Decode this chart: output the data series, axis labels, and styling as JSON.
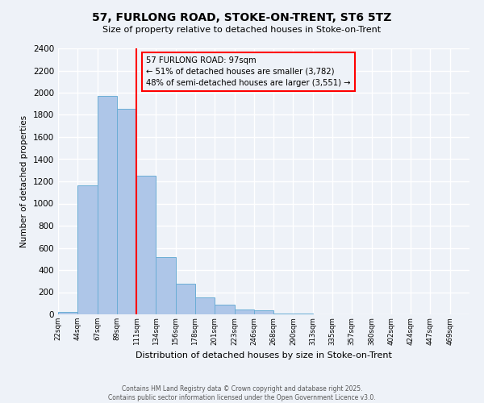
{
  "title": "57, FURLONG ROAD, STOKE-ON-TRENT, ST6 5TZ",
  "subtitle": "Size of property relative to detached houses in Stoke-on-Trent",
  "xlabel": "Distribution of detached houses by size in Stoke-on-Trent",
  "ylabel": "Number of detached properties",
  "bin_labels": [
    "22sqm",
    "44sqm",
    "67sqm",
    "89sqm",
    "111sqm",
    "134sqm",
    "156sqm",
    "178sqm",
    "201sqm",
    "223sqm",
    "246sqm",
    "268sqm",
    "290sqm",
    "313sqm",
    "335sqm",
    "357sqm",
    "380sqm",
    "402sqm",
    "424sqm",
    "447sqm",
    "469sqm"
  ],
  "bin_edges_raw": [
    22,
    44,
    67,
    89,
    111,
    134,
    156,
    178,
    201,
    223,
    246,
    268,
    290,
    313,
    335,
    357,
    380,
    402,
    424,
    447,
    469,
    491
  ],
  "bar_heights": [
    25,
    1165,
    1970,
    1855,
    1250,
    520,
    275,
    150,
    85,
    45,
    40,
    10,
    5,
    2,
    1,
    0,
    0,
    0,
    0,
    0,
    0
  ],
  "bar_color": "#aec6e8",
  "bar_edgecolor": "#6aadd5",
  "property_size": 97,
  "vline_color": "red",
  "annotation_line1": "57 FURLONG ROAD: 97sqm",
  "annotation_line2": "← 51% of detached houses are smaller (3,782)",
  "annotation_line3": "48% of semi-detached houses are larger (3,551) →",
  "annotation_box_edgecolor": "red",
  "ylim": [
    0,
    2400
  ],
  "yticks": [
    0,
    200,
    400,
    600,
    800,
    1000,
    1200,
    1400,
    1600,
    1800,
    2000,
    2200,
    2400
  ],
  "background_color": "#eef2f8",
  "grid_color": "#ffffff",
  "footer_line1": "Contains HM Land Registry data © Crown copyright and database right 2025.",
  "footer_line2": "Contains public sector information licensed under the Open Government Licence v3.0."
}
